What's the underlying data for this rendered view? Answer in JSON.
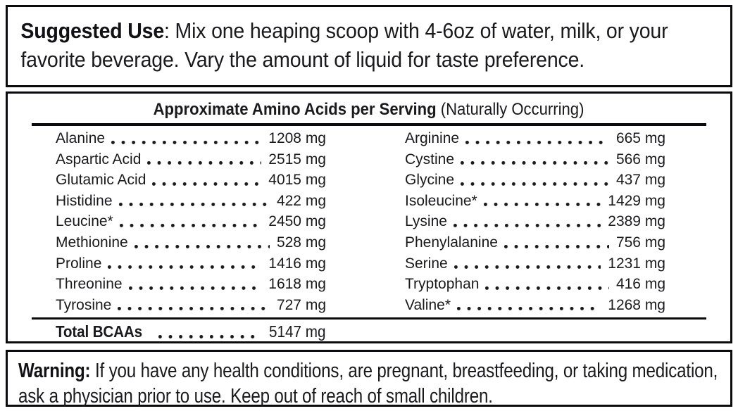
{
  "suggested_use": {
    "label": "Suggested Use",
    "text": ": Mix one heaping scoop with 4-6oz of water, milk, or your favorite beverage. Vary the amount of liquid for taste preference."
  },
  "amino_table": {
    "title_bold": "Approximate Amino Acids per Serving",
    "title_note": " (Naturally Occurring)",
    "left_column": [
      {
        "name": "Alanine",
        "value": "1208 mg"
      },
      {
        "name": "Aspartic Acid",
        "value": "2515 mg"
      },
      {
        "name": "Glutamic Acid",
        "value": "4015 mg"
      },
      {
        "name": "Histidine",
        "value": "422 mg"
      },
      {
        "name": "Leucine*",
        "value": "2450 mg"
      },
      {
        "name": "Methionine",
        "value": "528 mg"
      },
      {
        "name": "Proline",
        "value": "1416 mg"
      },
      {
        "name": "Threonine",
        "value": "1618 mg"
      },
      {
        "name": "Tyrosine",
        "value": "727 mg"
      }
    ],
    "right_column": [
      {
        "name": "Arginine",
        "value": "665 mg"
      },
      {
        "name": "Cystine",
        "value": "566 mg"
      },
      {
        "name": "Glycine",
        "value": "437 mg"
      },
      {
        "name": "Isoleucine*",
        "value": "1429 mg"
      },
      {
        "name": "Lysine",
        "value": "2389 mg"
      },
      {
        "name": "Phenylalanine",
        "value": "756 mg"
      },
      {
        "name": "Serine",
        "value": "1231 mg"
      },
      {
        "name": "Tryptophan",
        "value": "416 mg"
      },
      {
        "name": "Valine*",
        "value": "1268 mg"
      }
    ],
    "total": {
      "name": "Total BCAAs",
      "value": "5147 mg"
    }
  },
  "warning": {
    "label": "Warning:",
    "text": " If you have any health conditions, are pregnant, breastfeeding, or taking medication, ask a physician prior to use. Keep out of reach of small children."
  },
  "colors": {
    "text": "#1a1a1e",
    "border": "#0b0b0f",
    "background": "#ffffff"
  }
}
